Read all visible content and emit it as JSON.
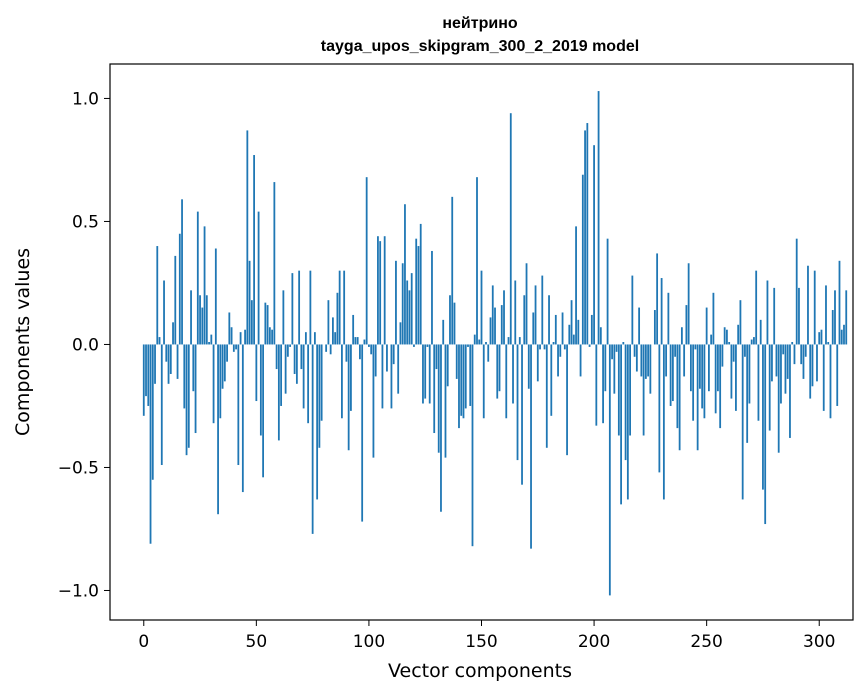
{
  "chart_data": {
    "type": "bar",
    "title_line1": "нейтрино",
    "title_line2": "tayga_upos_skipgram_300_2_2019 model",
    "xlabel": "Vector components",
    "ylabel": "Components values",
    "xlim": [
      -15,
      315
    ],
    "ylim": [
      -1.12,
      1.14
    ],
    "xticks": [
      0,
      50,
      100,
      150,
      200,
      250,
      300
    ],
    "xtick_labels": [
      "0",
      "50",
      "100",
      "150",
      "200",
      "250",
      "300"
    ],
    "yticks": [
      -1.0,
      -0.5,
      0.0,
      0.5,
      1.0
    ],
    "ytick_labels": [
      "−1.0",
      "−0.5",
      "0.0",
      "0.5",
      "1.0"
    ],
    "bar_color": "#1f77b4",
    "grid": false,
    "values": [
      -0.29,
      -0.21,
      -0.25,
      -0.81,
      -0.55,
      -0.16,
      0.4,
      0.03,
      -0.49,
      0.26,
      -0.07,
      -0.16,
      -0.12,
      0.09,
      0.36,
      -0.14,
      0.45,
      0.59,
      -0.26,
      -0.45,
      -0.42,
      0.22,
      -0.19,
      -0.36,
      0.54,
      0.2,
      0.15,
      0.48,
      0.2,
      0.01,
      0.04,
      -0.32,
      0.39,
      -0.69,
      -0.3,
      -0.18,
      -0.15,
      -0.07,
      0.13,
      0.07,
      -0.03,
      -0.02,
      -0.49,
      0.05,
      -0.6,
      0.06,
      0.87,
      0.34,
      0.18,
      0.77,
      -0.23,
      0.54,
      -0.37,
      -0.54,
      0.17,
      0.16,
      0.07,
      0.06,
      0.66,
      -0.1,
      -0.39,
      -0.25,
      0.22,
      -0.2,
      -0.05,
      -0.01,
      0.29,
      -0.12,
      -0.16,
      0.3,
      -0.1,
      -0.26,
      0.05,
      -0.32,
      0.3,
      -0.77,
      0.05,
      -0.63,
      -0.42,
      -0.31,
      0.0,
      -0.03,
      0.18,
      -0.04,
      0.11,
      0.05,
      0.21,
      0.3,
      -0.3,
      0.3,
      -0.07,
      -0.43,
      -0.27,
      0.12,
      0.03,
      0.03,
      -0.06,
      -0.72,
      0.02,
      0.68,
      -0.01,
      -0.04,
      -0.46,
      -0.13,
      0.44,
      0.42,
      -0.26,
      0.44,
      -0.11,
      0.0,
      -0.26,
      -0.08,
      0.34,
      -0.2,
      0.09,
      0.33,
      0.57,
      0.26,
      0.22,
      0.29,
      -0.01,
      0.43,
      0.4,
      0.49,
      -0.24,
      -0.22,
      -0.01,
      -0.24,
      0.38,
      -0.36,
      -0.1,
      -0.44,
      -0.68,
      0.1,
      -0.46,
      -0.17,
      0.2,
      0.6,
      0.17,
      -0.14,
      -0.34,
      -0.29,
      -0.3,
      -0.26,
      -0.01,
      -0.25,
      -0.82,
      0.04,
      0.68,
      0.02,
      0.3,
      -0.3,
      0.01,
      -0.07,
      0.11,
      0.24,
      0.15,
      -0.22,
      -0.19,
      0.16,
      0.22,
      -0.3,
      0.03,
      0.94,
      -0.24,
      0.26,
      -0.47,
      0.03,
      -0.57,
      0.2,
      0.33,
      -0.18,
      -0.83,
      0.13,
      0.24,
      -0.15,
      -0.02,
      0.28,
      -0.02,
      -0.42,
      0.2,
      -0.29,
      0.01,
      0.12,
      -0.13,
      -0.05,
      0.13,
      -0.02,
      -0.45,
      0.08,
      0.18,
      0.04,
      0.48,
      0.1,
      -0.13,
      0.69,
      0.87,
      0.9,
      -0.01,
      0.12,
      0.81,
      -0.33,
      1.03,
      0.07,
      -0.32,
      -0.19,
      0.43,
      -1.02,
      -0.06,
      -0.2,
      -0.03,
      -0.37,
      -0.65,
      0.01,
      -0.47,
      -0.63,
      -0.37,
      0.28,
      -0.05,
      -0.11,
      0.15,
      -0.13,
      -0.37,
      -0.14,
      -0.13,
      -0.2,
      0.0,
      0.14,
      0.37,
      -0.52,
      0.27,
      -0.63,
      -0.13,
      0.21,
      -0.25,
      -0.23,
      -0.05,
      -0.34,
      -0.43,
      0.07,
      -0.13,
      0.16,
      0.33,
      -0.19,
      -0.31,
      -0.02,
      -0.43,
      -0.18,
      -0.26,
      -0.3,
      0.15,
      -0.19,
      0.04,
      0.21,
      -0.28,
      -0.19,
      -0.34,
      -0.09,
      0.07,
      0.06,
      0.01,
      -0.22,
      -0.07,
      -0.27,
      0.08,
      0.18,
      -0.63,
      -0.05,
      -0.4,
      -0.24,
      0.02,
      0.03,
      0.3,
      -0.31,
      0.1,
      -0.59,
      -0.73,
      0.26,
      -0.35,
      -0.15,
      0.23,
      -0.13,
      -0.44,
      -0.24,
      -0.04,
      -0.2,
      -0.14,
      -0.38,
      0.01,
      -0.08,
      0.43,
      0.23,
      -0.08,
      -0.14,
      -0.05,
      0.32,
      -0.22,
      -0.17,
      0.3,
      -0.15,
      0.05,
      0.06,
      -0.27,
      0.24,
      0.01,
      -0.3,
      0.14,
      0.22,
      -0.25,
      0.34,
      0.06,
      0.08,
      0.22
    ]
  }
}
